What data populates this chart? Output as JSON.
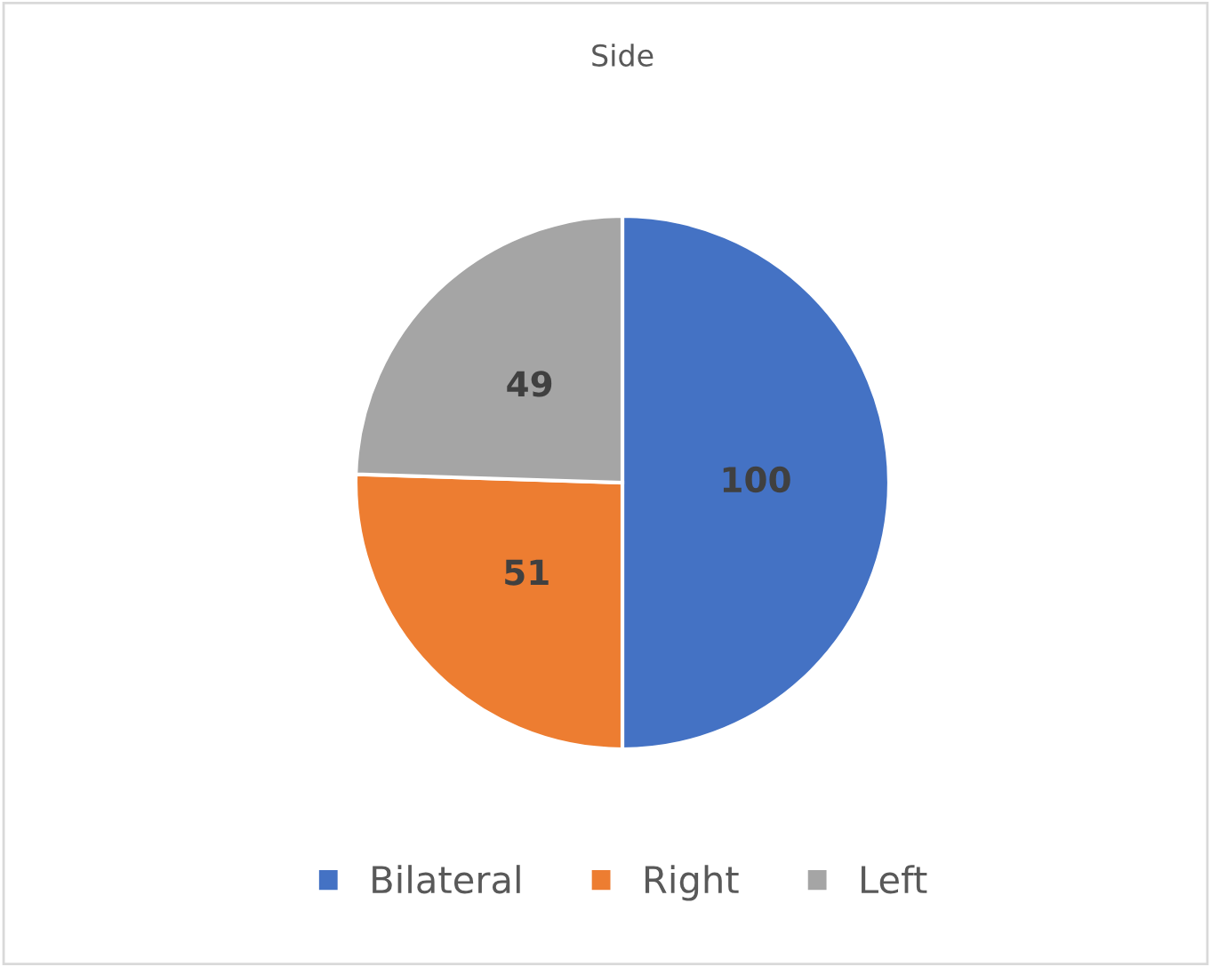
{
  "chart_data": {
    "type": "pie",
    "title": "Side",
    "categories": [
      "Bilateral",
      "Right",
      "Left"
    ],
    "values": [
      100,
      51,
      49
    ],
    "colors": [
      "#4472c4",
      "#ed7d31",
      "#a5a5a5"
    ],
    "data_labels": true,
    "legend": "bottom"
  }
}
